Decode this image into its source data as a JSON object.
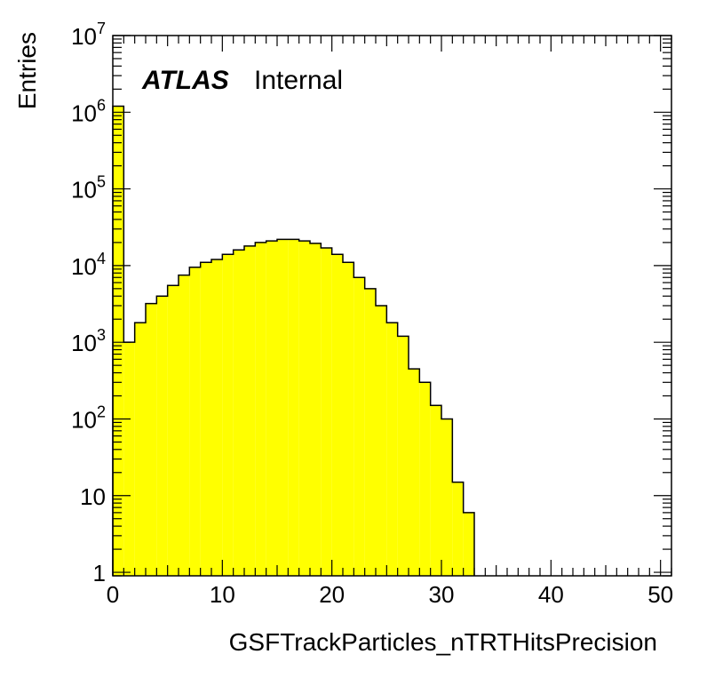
{
  "chart_data": {
    "type": "bar",
    "style": "histogram",
    "xlabel": "GSFTrackParticles_nTRTHitsPrecision",
    "ylabel": "Entries",
    "label_bold": "ATLAS",
    "label_status": "Internal",
    "xlim": [
      0,
      51
    ],
    "ylim": [
      0.9,
      10000000
    ],
    "log_y": true,
    "bin_width": 1,
    "bin_edges_start": 0,
    "values": [
      1200000,
      1000,
      1800,
      3200,
      4000,
      5500,
      7500,
      9500,
      11000,
      12000,
      14000,
      16000,
      18000,
      20000,
      21000,
      22000,
      22000,
      21000,
      19500,
      17000,
      14000,
      11000,
      7000,
      5000,
      3000,
      1800,
      1200,
      450,
      300,
      150,
      100,
      15,
      6
    ],
    "x_ticks": [
      0,
      10,
      20,
      30,
      40,
      50
    ],
    "x_tick_labels": [
      "0",
      "10",
      "20",
      "30",
      "40",
      "50"
    ],
    "y_ticks": [
      1,
      10,
      100,
      1000,
      10000,
      100000,
      1000000,
      10000000
    ],
    "y_tick_labels": [
      {
        "base": "1",
        "exp": ""
      },
      {
        "base": "10",
        "exp": ""
      },
      {
        "base": "10",
        "exp": "2"
      },
      {
        "base": "10",
        "exp": "3"
      },
      {
        "base": "10",
        "exp": "4"
      },
      {
        "base": "10",
        "exp": "5"
      },
      {
        "base": "10",
        "exp": "6"
      },
      {
        "base": "10",
        "exp": "7"
      }
    ],
    "fill_color": "#ffff00",
    "line_color": "#000000",
    "grid": false
  }
}
